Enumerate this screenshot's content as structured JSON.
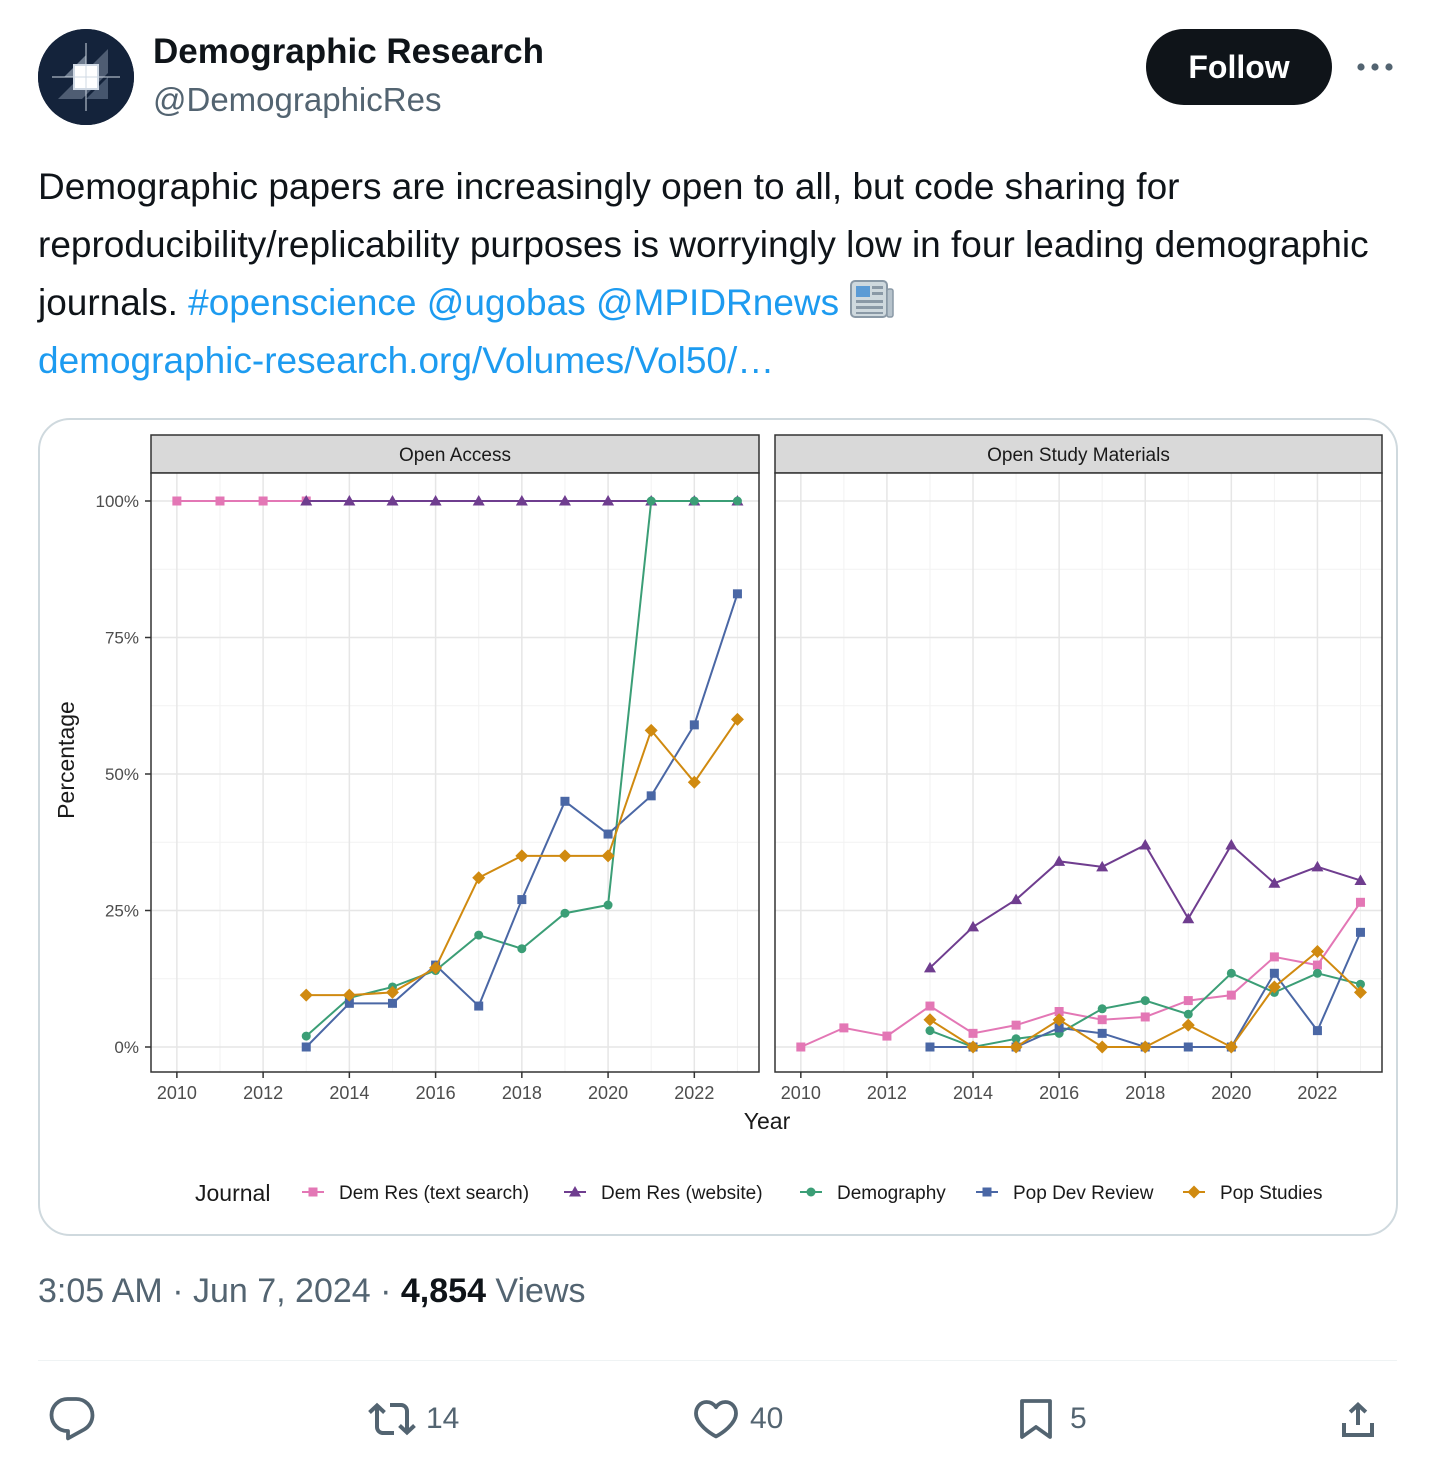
{
  "author": {
    "name": "Demographic Research",
    "handle": "@DemographicRes",
    "avatar_icon": "journal-logo-icon"
  },
  "follow_label": "Follow",
  "more_icon": "ellipsis-icon",
  "tweet": {
    "text_plain": "Demographic papers are increasingly open to all, but code sharing for reproducibility/replicability purposes is worryingly low in four leading demographic journals. ",
    "hashtag": "#openscience",
    "mention1": "@ugobas",
    "mention2": "@MPIDRnews",
    "emoji_icon": "newspaper-icon",
    "link": "demographic-research.org/Volumes/Vol50/…"
  },
  "meta": {
    "time": "3:05 AM",
    "sep1": " · ",
    "date": "Jun 7, 2024",
    "sep2": " · ",
    "views_count": "4,854",
    "views_label": " Views"
  },
  "actions": {
    "reply_icon": "reply-icon",
    "retweet_icon": "retweet-icon",
    "retweet_count": "14",
    "like_icon": "heart-icon",
    "like_count": "40",
    "bookmark_icon": "bookmark-icon",
    "bookmark_count": "5",
    "share_icon": "share-icon"
  },
  "colors": {
    "link": "#1d9bf0",
    "text": "#0f1419",
    "muted": "#536471"
  },
  "chart_data": {
    "type": "line",
    "xlabel": "Year",
    "ylabel": "Percentage",
    "ylim": [
      0,
      100
    ],
    "yticks": [
      "0%",
      "25%",
      "50%",
      "75%",
      "100%"
    ],
    "yvalues": [
      0,
      25,
      50,
      75,
      100
    ],
    "xticks": [
      2010,
      2012,
      2014,
      2016,
      2018,
      2020,
      2022
    ],
    "xlim": [
      2009.4,
      2023.5
    ],
    "grid": true,
    "legend_position": "bottom",
    "legend_title": "Journal",
    "series_styles": [
      {
        "name": "Dem Res (text search)",
        "color": "#e377b5",
        "marker": "square"
      },
      {
        "name": "Dem Res (website)",
        "color": "#6f3d8f",
        "marker": "triangle"
      },
      {
        "name": "Demography",
        "color": "#3b9e76",
        "marker": "circle"
      },
      {
        "name": "Pop Dev Review",
        "color": "#4a67a5",
        "marker": "square"
      },
      {
        "name": "Pop Studies",
        "color": "#d08a10",
        "marker": "diamond"
      }
    ],
    "panels": [
      {
        "title": "Open Access",
        "series": [
          {
            "name": "Dem Res (text search)",
            "x": [
              2010,
              2011,
              2012,
              2013
            ],
            "values": [
              100,
              100,
              100,
              100
            ]
          },
          {
            "name": "Dem Res (website)",
            "x": [
              2013,
              2014,
              2015,
              2016,
              2017,
              2018,
              2019,
              2020,
              2021,
              2022,
              2023
            ],
            "values": [
              100,
              100,
              100,
              100,
              100,
              100,
              100,
              100,
              100,
              100,
              100
            ]
          },
          {
            "name": "Demography",
            "x": [
              2013,
              2014,
              2015,
              2016,
              2017,
              2018,
              2019,
              2020,
              2021,
              2022,
              2023
            ],
            "values": [
              2,
              9,
              11,
              14,
              20.5,
              18,
              24.5,
              26,
              100,
              100,
              100
            ]
          },
          {
            "name": "Pop Dev Review",
            "x": [
              2013,
              2014,
              2015,
              2016,
              2017,
              2018,
              2019,
              2020,
              2021,
              2022,
              2023
            ],
            "values": [
              0,
              8,
              8,
              15,
              7.5,
              27,
              45,
              39,
              46,
              59,
              83
            ]
          },
          {
            "name": "Pop Studies",
            "x": [
              2013,
              2014,
              2015,
              2016,
              2017,
              2018,
              2019,
              2020,
              2021,
              2022,
              2023
            ],
            "values": [
              9.5,
              9.5,
              10,
              14.5,
              31,
              35,
              35,
              35,
              58,
              48.5,
              60
            ]
          }
        ]
      },
      {
        "title": "Open Study Materials",
        "series": [
          {
            "name": "Dem Res (text search)",
            "x": [
              2010,
              2011,
              2012,
              2013,
              2014,
              2015,
              2016,
              2017,
              2018,
              2019,
              2020,
              2021,
              2022,
              2023
            ],
            "values": [
              0,
              3.5,
              2,
              7.5,
              2.5,
              4,
              6.5,
              5,
              5.5,
              8.5,
              9.5,
              16.5,
              15,
              26.5
            ]
          },
          {
            "name": "Dem Res (website)",
            "x": [
              2013,
              2014,
              2015,
              2016,
              2017,
              2018,
              2019,
              2020,
              2021,
              2022,
              2023
            ],
            "values": [
              14.5,
              22,
              27,
              34,
              33,
              37,
              23.5,
              37,
              30,
              33,
              30.5
            ]
          },
          {
            "name": "Demography",
            "x": [
              2013,
              2014,
              2015,
              2016,
              2017,
              2018,
              2019,
              2020,
              2021,
              2022,
              2023
            ],
            "values": [
              3,
              0,
              1.5,
              2.5,
              7,
              8.5,
              6,
              13.5,
              10,
              13.5,
              11.5
            ]
          },
          {
            "name": "Pop Dev Review",
            "x": [
              2013,
              2014,
              2015,
              2016,
              2017,
              2018,
              2019,
              2020,
              2021,
              2022,
              2023
            ],
            "values": [
              0,
              0,
              0,
              3.5,
              2.5,
              0,
              0,
              0,
              13.5,
              3,
              21
            ]
          },
          {
            "name": "Pop Studies",
            "x": [
              2013,
              2014,
              2015,
              2016,
              2017,
              2018,
              2019,
              2020,
              2021,
              2022,
              2023
            ],
            "values": [
              5,
              0,
              0,
              5,
              0,
              0,
              4,
              0,
              11,
              17.5,
              10
            ]
          }
        ]
      }
    ]
  }
}
